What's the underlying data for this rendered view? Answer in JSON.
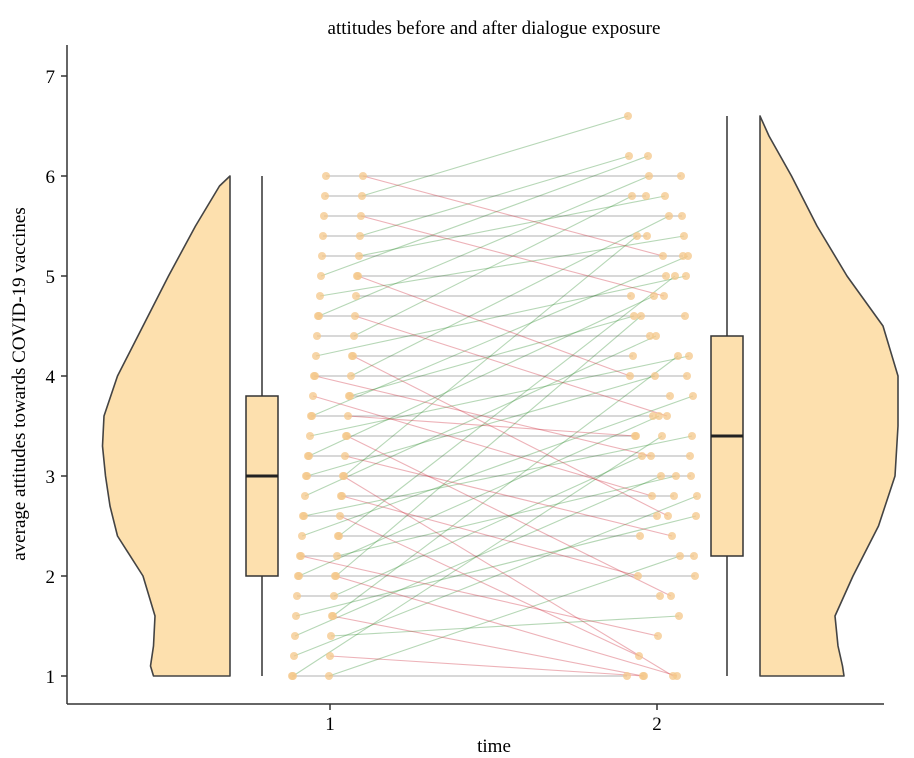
{
  "chart_data": {
    "type": "raincloud",
    "title": "attitudes before and after dialogue exposure",
    "xlabel": "time",
    "ylabel": "average attitudes towards COVID-19 vaccines",
    "categories": [
      "1",
      "2"
    ],
    "ylim": [
      0.75,
      7.3
    ],
    "yticks": [
      1,
      2,
      3,
      4,
      5,
      6,
      7
    ],
    "grid": false,
    "fill_color": "#fde0ae",
    "point_color": "#f4c78a",
    "line_colors": {
      "increase": "#2e8b2e",
      "decrease": "#cc2233",
      "same": "#222222"
    },
    "boxplots": [
      {
        "group": "1",
        "min": 1.0,
        "q1": 2.0,
        "median": 3.0,
        "q3": 3.8,
        "max": 6.0
      },
      {
        "group": "2",
        "min": 1.0,
        "q1": 2.2,
        "median": 3.4,
        "q3": 4.4,
        "max": 6.6
      }
    ],
    "density": [
      {
        "group": "1",
        "side": "left",
        "y": [
          1.0,
          1.1,
          1.3,
          1.6,
          2.0,
          2.4,
          2.7,
          3.0,
          3.3,
          3.6,
          4.0,
          4.5,
          5.0,
          5.5,
          5.9,
          6.0
        ],
        "density": [
          0.51,
          0.53,
          0.51,
          0.5,
          0.58,
          0.75,
          0.8,
          0.83,
          0.85,
          0.84,
          0.75,
          0.58,
          0.41,
          0.23,
          0.07,
          0.0
        ]
      },
      {
        "group": "2",
        "side": "right",
        "y": [
          1.0,
          1.1,
          1.3,
          1.6,
          2.0,
          2.5,
          3.0,
          3.5,
          4.0,
          4.5,
          5.0,
          5.5,
          6.0,
          6.4,
          6.6
        ],
        "density": [
          0.56,
          0.55,
          0.52,
          0.5,
          0.62,
          0.79,
          0.9,
          0.92,
          0.92,
          0.82,
          0.58,
          0.38,
          0.21,
          0.06,
          0.0
        ]
      }
    ],
    "paired_values": [
      [
        1.0,
        1.0
      ],
      [
        1.0,
        2.2
      ],
      [
        1.0,
        3.4
      ],
      [
        1.2,
        1.0
      ],
      [
        1.2,
        2.8
      ],
      [
        1.4,
        1.6
      ],
      [
        1.4,
        3.0
      ],
      [
        1.6,
        1.0
      ],
      [
        1.6,
        2.6
      ],
      [
        1.6,
        4.2
      ],
      [
        1.8,
        1.8
      ],
      [
        1.8,
        3.2
      ],
      [
        2.0,
        2.0
      ],
      [
        2.0,
        1.0
      ],
      [
        2.0,
        3.6
      ],
      [
        2.0,
        4.6
      ],
      [
        2.2,
        2.2
      ],
      [
        2.2,
        3.0
      ],
      [
        2.2,
        1.4
      ],
      [
        2.4,
        2.4
      ],
      [
        2.4,
        3.8
      ],
      [
        2.4,
        5.0
      ],
      [
        2.6,
        2.6
      ],
      [
        2.6,
        1.2
      ],
      [
        2.6,
        3.4
      ],
      [
        2.8,
        2.8
      ],
      [
        2.8,
        4.4
      ],
      [
        2.8,
        2.0
      ],
      [
        3.0,
        3.0
      ],
      [
        3.0,
        1.0
      ],
      [
        3.0,
        4.0
      ],
      [
        3.0,
        5.4
      ],
      [
        3.2,
        3.2
      ],
      [
        3.2,
        2.4
      ],
      [
        3.2,
        4.8
      ],
      [
        3.4,
        3.4
      ],
      [
        3.4,
        4.2
      ],
      [
        3.4,
        1.8
      ],
      [
        3.6,
        3.6
      ],
      [
        3.6,
        3.4
      ],
      [
        3.6,
        5.2
      ],
      [
        3.8,
        3.8
      ],
      [
        3.8,
        2.8
      ],
      [
        3.8,
        4.6
      ],
      [
        4.0,
        4.0
      ],
      [
        4.0,
        5.6
      ],
      [
        4.0,
        3.2
      ],
      [
        4.2,
        4.2
      ],
      [
        4.2,
        5.0
      ],
      [
        4.2,
        2.6
      ],
      [
        4.4,
        4.4
      ],
      [
        4.4,
        5.8
      ],
      [
        4.6,
        4.6
      ],
      [
        4.6,
        3.6
      ],
      [
        4.6,
        6.0
      ],
      [
        4.8,
        4.8
      ],
      [
        4.8,
        5.4
      ],
      [
        5.0,
        5.0
      ],
      [
        5.0,
        6.2
      ],
      [
        5.0,
        4.0
      ],
      [
        5.2,
        5.2
      ],
      [
        5.2,
        5.8
      ],
      [
        5.4,
        5.4
      ],
      [
        5.4,
        6.2
      ],
      [
        5.6,
        5.6
      ],
      [
        5.6,
        4.8
      ],
      [
        5.8,
        5.8
      ],
      [
        5.8,
        6.6
      ],
      [
        6.0,
        6.0
      ],
      [
        6.0,
        5.2
      ]
    ]
  }
}
